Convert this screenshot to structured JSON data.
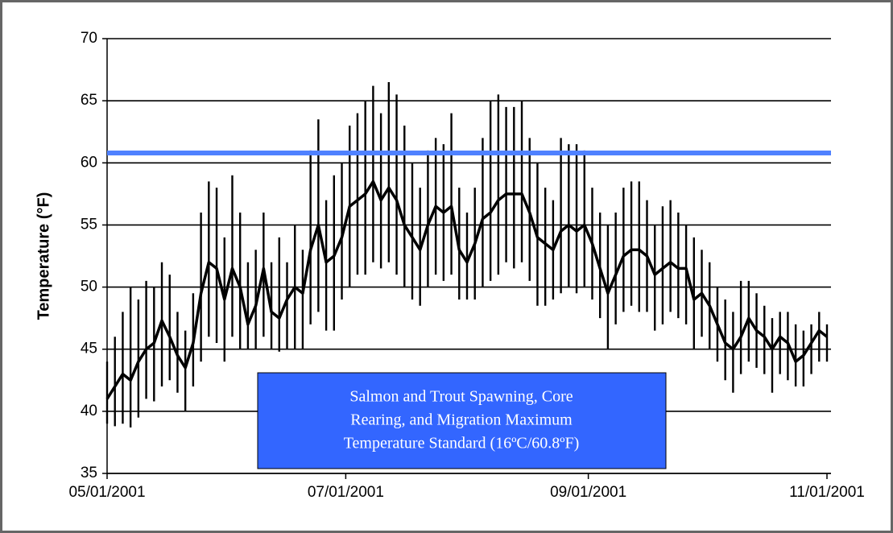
{
  "chart_data": {
    "type": "line",
    "y_label": "Temperature (°F)",
    "ylim": [
      35,
      70
    ],
    "yticks": [
      35,
      40,
      45,
      50,
      55,
      60,
      65,
      70
    ],
    "grid": true,
    "xlim": [
      "05/01/2001",
      "11/01/2001"
    ],
    "xticks": [
      "05/01/2001",
      "07/01/2001",
      "09/01/2001",
      "11/01/2001"
    ],
    "x": [
      "05/01/2001",
      "05/03/2001",
      "05/05/2001",
      "05/07/2001",
      "05/09/2001",
      "05/11/2001",
      "05/13/2001",
      "05/15/2001",
      "05/17/2001",
      "05/19/2001",
      "05/21/2001",
      "05/23/2001",
      "05/25/2001",
      "05/27/2001",
      "05/29/2001",
      "05/31/2001",
      "06/02/2001",
      "06/04/2001",
      "06/06/2001",
      "06/08/2001",
      "06/10/2001",
      "06/12/2001",
      "06/14/2001",
      "06/16/2001",
      "06/18/2001",
      "06/20/2001",
      "06/22/2001",
      "06/24/2001",
      "06/26/2001",
      "06/28/2001",
      "06/30/2001",
      "07/02/2001",
      "07/04/2001",
      "07/06/2001",
      "07/08/2001",
      "07/10/2001",
      "07/12/2001",
      "07/14/2001",
      "07/16/2001",
      "07/18/2001",
      "07/20/2001",
      "07/22/2001",
      "07/24/2001",
      "07/26/2001",
      "07/28/2001",
      "07/30/2001",
      "08/01/2001",
      "08/03/2001",
      "08/05/2001",
      "08/07/2001",
      "08/09/2001",
      "08/11/2001",
      "08/13/2001",
      "08/15/2001",
      "08/17/2001",
      "08/19/2001",
      "08/21/2001",
      "08/23/2001",
      "08/25/2001",
      "08/27/2001",
      "08/29/2001",
      "08/31/2001",
      "09/02/2001",
      "09/04/2001",
      "09/06/2001",
      "09/08/2001",
      "09/10/2001",
      "09/12/2001",
      "09/14/2001",
      "09/16/2001",
      "09/18/2001",
      "09/20/2001",
      "09/22/2001",
      "09/24/2001",
      "09/26/2001",
      "09/28/2001",
      "09/30/2001",
      "10/02/2001",
      "10/04/2001",
      "10/06/2001",
      "10/08/2001",
      "10/10/2001",
      "10/12/2001",
      "10/14/2001",
      "10/16/2001",
      "10/18/2001",
      "10/20/2001",
      "10/22/2001",
      "10/24/2001",
      "10/26/2001",
      "10/28/2001",
      "10/30/2001",
      "11/01/2001"
    ],
    "range": {
      "color": "#000000",
      "low": [
        39,
        38.8,
        39,
        38.7,
        39.5,
        41,
        40.8,
        42,
        42.5,
        41.5,
        40,
        42,
        44,
        46,
        45.5,
        44,
        46,
        45,
        45,
        45,
        46,
        45,
        44.8,
        45,
        45,
        45,
        47,
        48,
        46.5,
        46.5,
        49,
        50,
        51,
        51,
        52,
        51.5,
        52,
        51,
        50,
        49,
        48.5,
        50,
        51,
        50.5,
        51,
        49,
        49,
        49,
        50,
        50.5,
        51,
        52,
        51.5,
        52,
        50.5,
        48.5,
        48.5,
        49,
        49.5,
        50,
        49.5,
        50,
        49,
        47.5,
        45,
        47,
        48,
        48.5,
        48,
        48,
        46.5,
        47,
        48,
        47.5,
        47,
        45,
        46,
        45,
        44,
        42.5,
        41.5,
        43,
        44,
        43.5,
        43,
        41.5,
        43,
        42.5,
        42,
        42,
        43,
        44,
        44
      ],
      "high": [
        44,
        46,
        48,
        50,
        49,
        50.5,
        50,
        52,
        51,
        48,
        46.5,
        49.5,
        56,
        58.5,
        58,
        54,
        59,
        56,
        52,
        53,
        56,
        52,
        54,
        52,
        55,
        53,
        61,
        63.5,
        57,
        59,
        60,
        63,
        64,
        65,
        66.2,
        64,
        66.5,
        65.5,
        63,
        60,
        58,
        61,
        62,
        61.5,
        64,
        58,
        56,
        58,
        62,
        65,
        65.5,
        64.5,
        64.5,
        65,
        62,
        60,
        58,
        57,
        62,
        61.5,
        61.5,
        61,
        58,
        56,
        55,
        56,
        58,
        58.5,
        58.5,
        57,
        55,
        56.5,
        57,
        56,
        55,
        54,
        53,
        52,
        50,
        49,
        48,
        50.5,
        50.5,
        49.5,
        48.5,
        47.5,
        48,
        48,
        47,
        46.5,
        47,
        48,
        47
      ]
    },
    "series": [
      {
        "color": "#000000",
        "values": [
          41,
          42,
          43,
          42.5,
          44,
          45,
          45.5,
          47.3,
          46,
          44.5,
          43.5,
          45.5,
          49.5,
          52,
          51.5,
          49,
          51.5,
          50,
          47,
          48.5,
          51.5,
          48,
          47.5,
          49,
          50,
          49.5,
          53,
          55,
          52,
          52.5,
          54,
          56.5,
          57,
          57.5,
          58.5,
          57,
          58,
          57,
          55,
          54,
          53,
          55,
          56.5,
          56,
          56.5,
          53,
          52,
          53.5,
          55.5,
          56,
          57,
          57.5,
          57.5,
          57.5,
          56,
          54,
          53.5,
          53,
          54.5,
          55,
          54.5,
          55,
          53.5,
          51.5,
          49.5,
          51,
          52.5,
          53,
          53,
          52.5,
          51,
          51.5,
          52,
          51.5,
          51.5,
          49,
          49.5,
          48.5,
          47,
          45.5,
          45,
          46,
          47.5,
          46.5,
          46,
          45,
          46,
          45.5,
          44,
          44.5,
          45.5,
          46.5,
          46
        ]
      }
    ],
    "reference_line": {
      "value": 60.8,
      "color": "#4f81ff"
    },
    "annotation": {
      "lines": [
        "Salmon and Trout Spawning, Core",
        "Rearing, and Migration Maximum",
        "Temperature Standard (16ºC/60.8ºF)"
      ],
      "color": "#3366ff"
    }
  }
}
